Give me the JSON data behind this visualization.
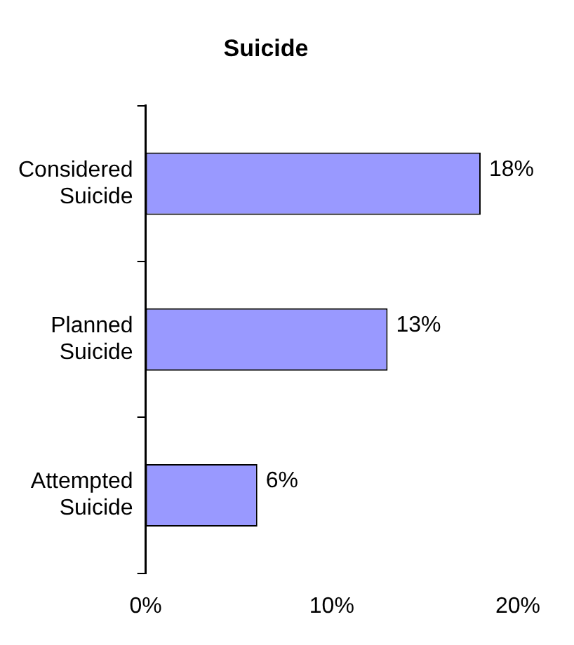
{
  "chart_data": {
    "type": "bar",
    "orientation": "horizontal",
    "title": "Suicide",
    "categories": [
      "Considered Suicide",
      "Planned Suicide",
      "Attempted Suicide"
    ],
    "values": [
      18,
      13,
      6
    ],
    "color": "#9999ff",
    "value_labels": [
      "18%",
      "13%",
      "6%"
    ],
    "xlim": [
      0,
      20
    ],
    "xticks": [
      {
        "value": 0,
        "label": "0%"
      },
      {
        "value": 10,
        "label": "10%"
      },
      {
        "value": 20,
        "label": "20%"
      }
    ],
    "grid": false,
    "legend": false
  }
}
